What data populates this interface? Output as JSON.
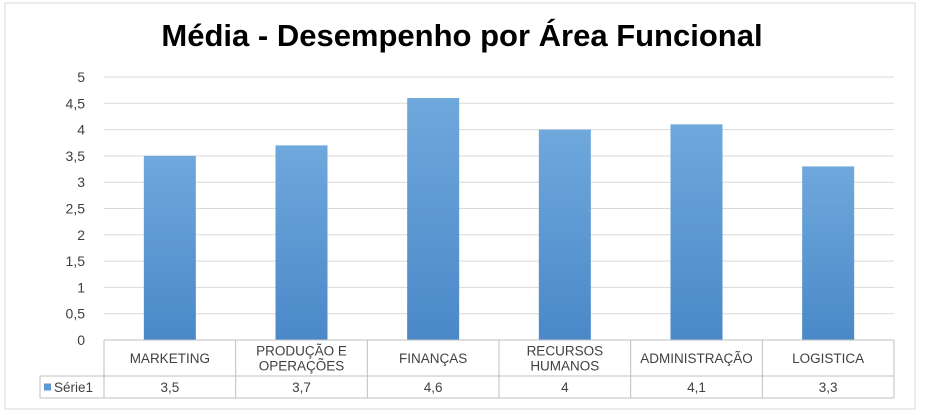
{
  "chart_data": {
    "type": "bar",
    "title": "Média - Desempenho por Área Funcional",
    "categories": [
      [
        "MARKETING"
      ],
      [
        "PRODUÇÃO E",
        "OPERAÇÕES"
      ],
      [
        "FINANÇAS"
      ],
      [
        "RECURSOS",
        "HUMANOS"
      ],
      [
        "ADMINISTRAÇÃO"
      ],
      [
        "LOGISTICA"
      ]
    ],
    "series": [
      {
        "name": "Série1",
        "values": [
          3.5,
          3.7,
          4.6,
          4,
          4.1,
          3.3
        ],
        "value_labels": [
          "3,5",
          "3,7",
          "4,6",
          "4",
          "4,1",
          "3,3"
        ],
        "color": "#5B9BD5"
      }
    ],
    "y_ticks": [
      "0",
      "0,5",
      "1",
      "1,5",
      "2",
      "2,5",
      "3",
      "3,5",
      "4",
      "4,5",
      "5"
    ],
    "ylim": [
      0,
      5
    ],
    "y_step": 0.5,
    "grid": true,
    "data_table": true,
    "legend": "data-table"
  }
}
